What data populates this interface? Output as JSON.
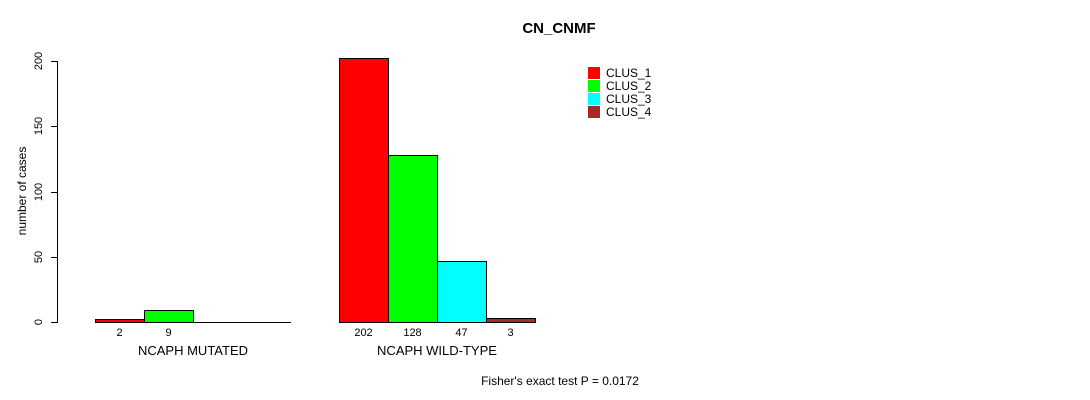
{
  "title": "CN_CNMF",
  "footer": "Fisher's exact test P = 0.0172",
  "colors": {
    "background": "#ffffff",
    "axis": "#000000",
    "clus1": "#ff0000",
    "clus2": "#00ff00",
    "clus3": "#00ffff",
    "clus4": "#a52a2a"
  },
  "chart_data": {
    "type": "bar",
    "title": "CN_CNMF",
    "xlabel": "",
    "ylabel": "number of cases",
    "ylim": [
      0,
      200
    ],
    "yticks": [
      0,
      50,
      100,
      150,
      200
    ],
    "grid": false,
    "legend_position": "top-right",
    "categories": [
      "NCAPH MUTATED",
      "NCAPH WILD-TYPE"
    ],
    "series": [
      {
        "name": "CLUS_1",
        "color": "#ff0000",
        "values": [
          2,
          202
        ]
      },
      {
        "name": "CLUS_2",
        "color": "#00ff00",
        "values": [
          9,
          128
        ]
      },
      {
        "name": "CLUS_3",
        "color": "#00ffff",
        "values": [
          0,
          47
        ]
      },
      {
        "name": "CLUS_4",
        "color": "#a52a2a",
        "values": [
          0,
          3
        ]
      }
    ],
    "bar_value_labels": [
      [
        "2",
        "9",
        "",
        ""
      ],
      [
        "202",
        "128",
        "47",
        "3"
      ]
    ],
    "annotation": "Fisher's exact test P = 0.0172"
  }
}
